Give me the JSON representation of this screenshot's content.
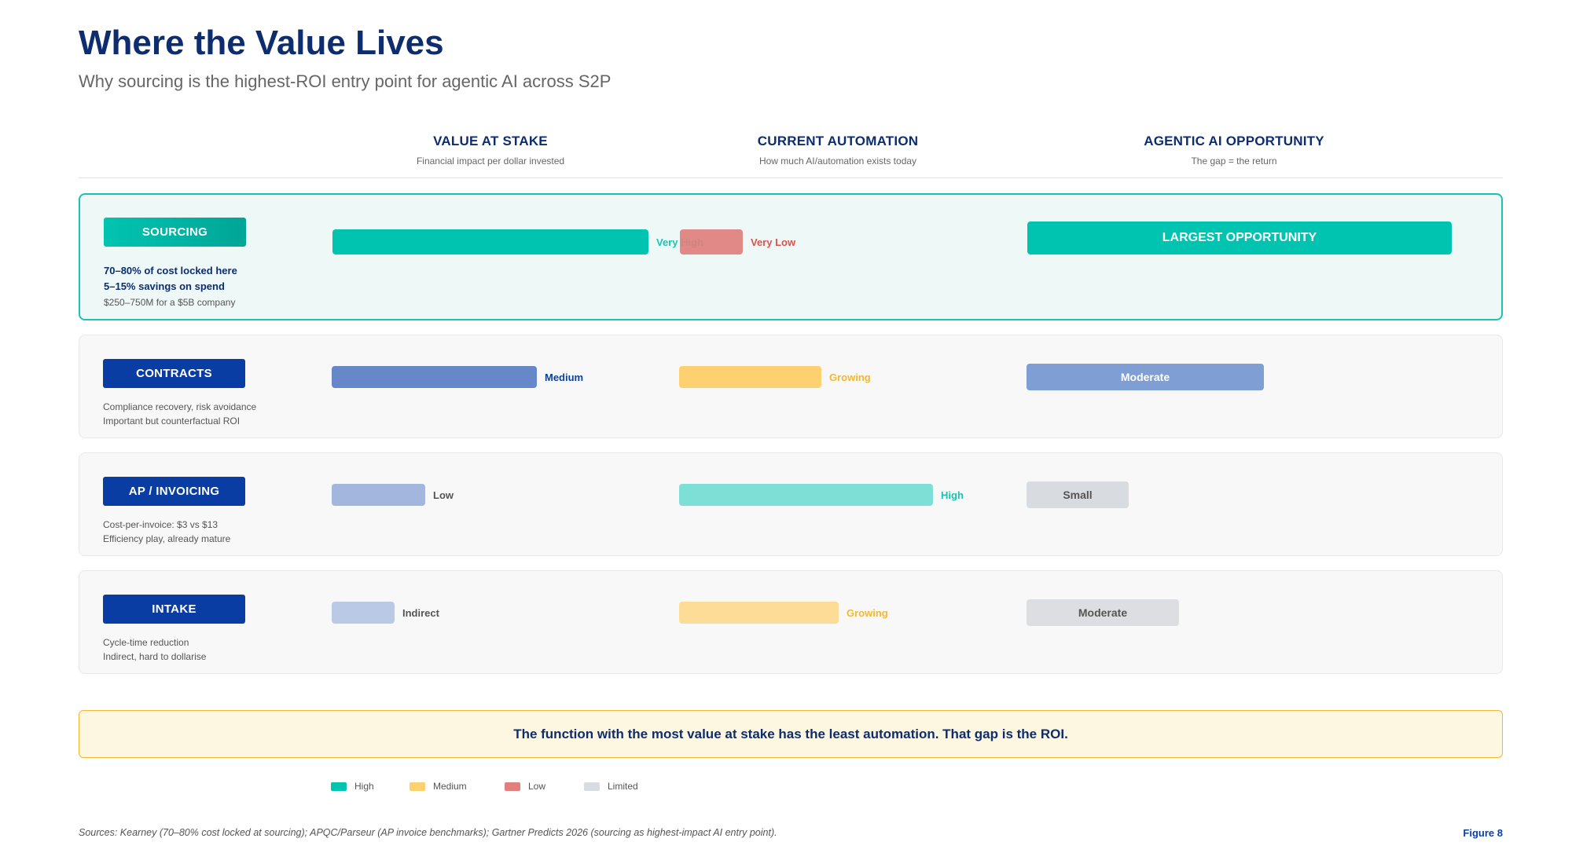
{
  "header": {
    "title": "Where the Value Lives",
    "subtitle": "Why sourcing is the highest-ROI entry point for agentic AI across S2P"
  },
  "columns": [
    {
      "heading": "VALUE AT STAKE",
      "sub": "Financial impact per dollar invested"
    },
    {
      "heading": "CURRENT AUTOMATION",
      "sub": "How much AI/automation exists today"
    },
    {
      "heading": "AGENTIC AI OPPORTUNITY",
      "sub": "The gap = the return"
    }
  ],
  "chart_data": {
    "type": "bar",
    "categories": [
      "SOURCING",
      "CONTRACTS",
      "AP / INVOICING",
      "INTAKE"
    ],
    "series": [
      {
        "name": "VALUE AT STAKE",
        "values": [
          0.91,
          0.59,
          0.27,
          0.18
        ],
        "labels": [
          "Very High",
          "Medium",
          "Low",
          "Indirect"
        ]
      },
      {
        "name": "CURRENT AUTOMATION",
        "values": [
          0.18,
          0.41,
          0.73,
          0.46
        ],
        "labels": [
          "Very Low",
          "Growing",
          "High",
          "Growing"
        ]
      },
      {
        "name": "AGENTIC AI OPPORTUNITY",
        "values": [
          1.0,
          0.56,
          0.24,
          0.36
        ],
        "labels": [
          "LARGEST OPPORTUNITY",
          "Moderate",
          "Small",
          "Moderate"
        ]
      }
    ],
    "value_levels": [
      "high",
      "medium",
      "low",
      "low"
    ],
    "automation_levels": [
      "low",
      "medium",
      "high",
      "medium"
    ],
    "opportunity_levels": [
      "high",
      "medium",
      "limited",
      "limited"
    ],
    "legend_position": "bottom-left"
  },
  "rows": [
    {
      "function": "SOURCING",
      "notes": [
        "70–80% of cost locked here",
        "5–15% savings on spend",
        "$250–750M for a $5B company"
      ]
    },
    {
      "function": "CONTRACTS",
      "notes": [
        "Compliance recovery, risk avoidance",
        "Important but counterfactual ROI"
      ]
    },
    {
      "function": "AP / INVOICING",
      "notes": [
        "Cost-per-invoice: $3 vs $13",
        "Efficiency play, already mature"
      ]
    },
    {
      "function": "INTAKE",
      "notes": [
        "Cycle-time reduction",
        "Indirect, hard to dollarise"
      ]
    }
  ],
  "callout": "The function with the most value at stake has the least automation. That gap is the ROI.",
  "legend": [
    {
      "label": "High",
      "color": "#00c4b0"
    },
    {
      "label": "Medium",
      "color": "#fdd16f"
    },
    {
      "label": "Low",
      "color": "#e07f7c"
    },
    {
      "label": "Limited",
      "color": "#d8dbdf"
    }
  ],
  "colors": {
    "navy": "#0d2d6e",
    "brand_blue": "#0d3fa0",
    "teal": "#00c4b0",
    "teal_light": "#7ddfd5",
    "red": "#e07f7c",
    "amber": "#fdd16f",
    "blue_medium": "#6688c8",
    "blue_low": "#a3b6de",
    "blue_light": "#b9c9e6"
  },
  "footer": {
    "sources": "Sources: Kearney (70–80% cost locked at sourcing); APQC/Parseur (AP invoice benchmarks); Gartner Predicts 2026 (sourcing as highest-impact AI entry point).",
    "figure": "Figure 8"
  }
}
